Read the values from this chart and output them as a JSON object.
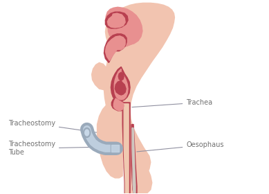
{
  "background_color": "#ffffff",
  "skin_outer_color": "#F2C4B0",
  "skin_inner_color": "#EAB0A0",
  "airway_dark": "#B84050",
  "airway_light": "#E89090",
  "trachea_inner": "#F0C8B0",
  "tube_outer": "#9AAABB",
  "tube_inner": "#C8D8E8",
  "arrow_color": "#3A9A3A",
  "text_color": "#707070",
  "line_color": "#9090A0",
  "labels": {
    "trachea": "Trachea",
    "tracheostomy": "Tracheostomy",
    "tube": "Tracheostomy\nTube",
    "oesophaus": "Oesophaus"
  }
}
